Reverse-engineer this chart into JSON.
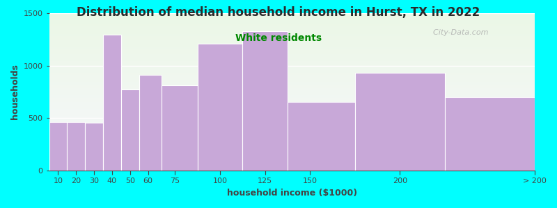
{
  "title": "Distribution of median household income in Hurst, TX in 2022",
  "subtitle": "White residents",
  "xlabel": "household income ($1000)",
  "ylabel": "households",
  "bin_edges": [
    5,
    15,
    25,
    35,
    45,
    55,
    67.5,
    87.5,
    112.5,
    137.5,
    175,
    225,
    275
  ],
  "tick_positions": [
    10,
    20,
    30,
    40,
    50,
    60,
    75,
    100,
    125,
    150,
    200,
    275
  ],
  "tick_labels": [
    "10",
    "20",
    "30",
    "40",
    "50",
    "60",
    "75",
    "100",
    "125",
    "150",
    "200",
    "> 200"
  ],
  "values": [
    460,
    460,
    455,
    1295,
    775,
    910,
    810,
    1210,
    1330,
    655,
    930,
    700
  ],
  "bar_color": "#c8a8d8",
  "bar_edge_color": "#ffffff",
  "background_color": "#00ffff",
  "title_color": "#2a2a2a",
  "subtitle_color": "#008800",
  "axis_color": "#444444",
  "ylim": [
    0,
    1500
  ],
  "yticks": [
    0,
    500,
    1000,
    1500
  ],
  "title_fontsize": 12,
  "subtitle_fontsize": 10,
  "label_fontsize": 9,
  "tick_fontsize": 8,
  "watermark": "  City-Data.com"
}
